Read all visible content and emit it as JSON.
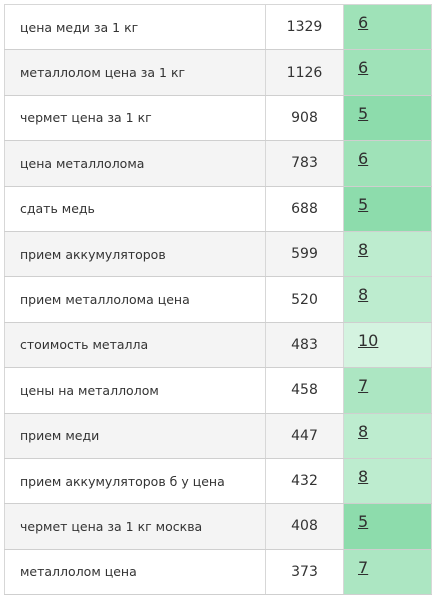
{
  "rows": [
    {
      "keyword": "цена меди за 1 кг",
      "frequency": "1329",
      "competition": "6"
    },
    {
      "keyword": "металлолом цена за 1 кг",
      "frequency": "1126",
      "competition": "6"
    },
    {
      "keyword": "чермет цена за 1 кг",
      "frequency": "908",
      "competition": "5"
    },
    {
      "keyword": "цена металлолома",
      "frequency": "783",
      "competition": "6"
    },
    {
      "keyword": "сдать медь",
      "frequency": "688",
      "competition": "5"
    },
    {
      "keyword": "прием аккумуляторов",
      "frequency": "599",
      "competition": "8"
    },
    {
      "keyword": "прием металлолома цена",
      "frequency": "520",
      "competition": "8"
    },
    {
      "keyword": "стоимость металла",
      "frequency": "483",
      "competition": "10"
    },
    {
      "keyword": "цены на металлолом",
      "frequency": "458",
      "competition": "7"
    },
    {
      "keyword": "прием меди",
      "frequency": "447",
      "competition": "8"
    },
    {
      "keyword": "прием аккумуляторов б у цена",
      "frequency": "432",
      "competition": "8"
    },
    {
      "keyword": "чермет цена за 1 кг москва",
      "frequency": "408",
      "competition": "5"
    },
    {
      "keyword": "металлолом цена",
      "frequency": "373",
      "competition": "7"
    }
  ],
  "colors": {
    "competition_5": "#8ddcac",
    "competition_6": "#9fe2b8",
    "competition_7": "#ace6c2",
    "competition_8": "#bdeccf",
    "competition_10": "#d4f3e0"
  }
}
